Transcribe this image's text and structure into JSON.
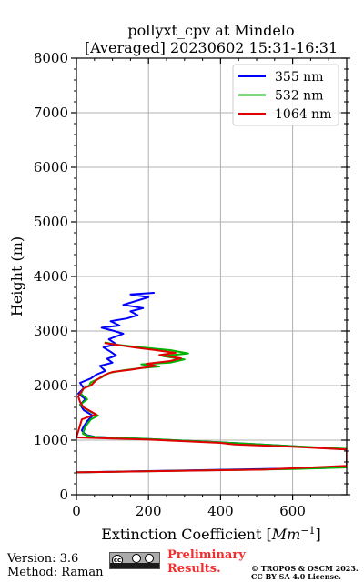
{
  "chart_data": {
    "type": "line",
    "title_line1": "pollyxt_cpv at Mindelo",
    "title_line2": "[Averaged] 20230602 15:31-16:31",
    "xlabel": "Extinction Coefficient [",
    "xlabel_unit": "Mm",
    "xlabel_exp": "−1",
    "xlabel_close": "]",
    "ylabel": "Height (m)",
    "xlim": [
      0,
      750
    ],
    "ylim": [
      0,
      8000
    ],
    "xticks": [
      0,
      200,
      400,
      600
    ],
    "yticks": [
      0,
      1000,
      2000,
      3000,
      4000,
      5000,
      6000,
      7000,
      8000
    ],
    "grid": true,
    "legend_position": "top-right",
    "series": [
      {
        "name": "355 nm",
        "color": "#0000ff",
        "points": [
          [
            0,
            410
          ],
          [
            690,
            490
          ],
          [
            750,
            520
          ],
          [
            750,
            830
          ],
          [
            600,
            890
          ],
          [
            400,
            960
          ],
          [
            200,
            1020
          ],
          [
            50,
            1060
          ],
          [
            30,
            1090
          ],
          [
            22,
            1120
          ],
          [
            15,
            1180
          ],
          [
            20,
            1250
          ],
          [
            30,
            1350
          ],
          [
            45,
            1450
          ],
          [
            20,
            1550
          ],
          [
            10,
            1650
          ],
          [
            25,
            1750
          ],
          [
            5,
            1850
          ],
          [
            20,
            1950
          ],
          [
            10,
            2050
          ],
          [
            40,
            2130
          ],
          [
            55,
            2200
          ],
          [
            80,
            2270
          ],
          [
            65,
            2360
          ],
          [
            100,
            2420
          ],
          [
            85,
            2490
          ],
          [
            110,
            2550
          ],
          [
            95,
            2620
          ],
          [
            75,
            2700
          ],
          [
            110,
            2760
          ],
          [
            90,
            2850
          ],
          [
            130,
            2950
          ],
          [
            105,
            3000
          ],
          [
            70,
            3060
          ],
          [
            120,
            3100
          ],
          [
            95,
            3180
          ],
          [
            140,
            3230
          ],
          [
            170,
            3290
          ],
          [
            150,
            3360
          ],
          [
            185,
            3420
          ],
          [
            130,
            3480
          ],
          [
            165,
            3550
          ],
          [
            200,
            3620
          ],
          [
            150,
            3670
          ],
          [
            215,
            3700
          ]
        ]
      },
      {
        "name": "532 nm",
        "color": "#00b400",
        "points": [
          [
            0,
            410
          ],
          [
            600,
            470
          ],
          [
            750,
            500
          ],
          [
            750,
            840
          ],
          [
            600,
            890
          ],
          [
            400,
            960
          ],
          [
            200,
            1020
          ],
          [
            45,
            1060
          ],
          [
            30,
            1080
          ],
          [
            18,
            1120
          ],
          [
            25,
            1250
          ],
          [
            40,
            1380
          ],
          [
            60,
            1450
          ],
          [
            30,
            1550
          ],
          [
            10,
            1650
          ],
          [
            30,
            1750
          ],
          [
            12,
            1850
          ],
          [
            20,
            1950
          ],
          [
            35,
            2000
          ],
          [
            40,
            2060
          ],
          [
            70,
            2150
          ],
          [
            90,
            2230
          ],
          [
            130,
            2280
          ],
          [
            180,
            2320
          ],
          [
            230,
            2350
          ],
          [
            180,
            2390
          ],
          [
            260,
            2420
          ],
          [
            300,
            2480
          ],
          [
            240,
            2540
          ],
          [
            310,
            2590
          ],
          [
            260,
            2650
          ],
          [
            180,
            2700
          ],
          [
            110,
            2750
          ],
          [
            80,
            2790
          ]
        ]
      },
      {
        "name": "1064 nm",
        "color": "#e00000",
        "points": [
          [
            0,
            410
          ],
          [
            520,
            460
          ],
          [
            750,
            530
          ],
          [
            750,
            830
          ],
          [
            600,
            880
          ],
          [
            440,
            920
          ],
          [
            400,
            950
          ],
          [
            200,
            1010
          ],
          [
            0,
            1050
          ],
          [
            15,
            1380
          ],
          [
            40,
            1440
          ],
          [
            55,
            1470
          ],
          [
            20,
            1600
          ],
          [
            10,
            1700
          ],
          [
            5,
            1800
          ],
          [
            20,
            1950
          ],
          [
            40,
            2000
          ],
          [
            55,
            2100
          ],
          [
            80,
            2200
          ],
          [
            100,
            2250
          ],
          [
            150,
            2290
          ],
          [
            180,
            2320
          ],
          [
            220,
            2360
          ],
          [
            195,
            2400
          ],
          [
            260,
            2450
          ],
          [
            290,
            2500
          ],
          [
            230,
            2560
          ],
          [
            275,
            2600
          ],
          [
            220,
            2650
          ],
          [
            160,
            2700
          ],
          [
            120,
            2740
          ],
          [
            80,
            2780
          ]
        ]
      }
    ]
  },
  "footer": {
    "version": "Version: 3.6",
    "method": "Method: Raman",
    "preliminary_line1": "Preliminary",
    "preliminary_line2": "Results.",
    "copyright_line1": "© TROPOS & OSCM 2023.",
    "copyright_line2": "CC BY SA 4.0 License.",
    "license_badge_text": "cc"
  }
}
